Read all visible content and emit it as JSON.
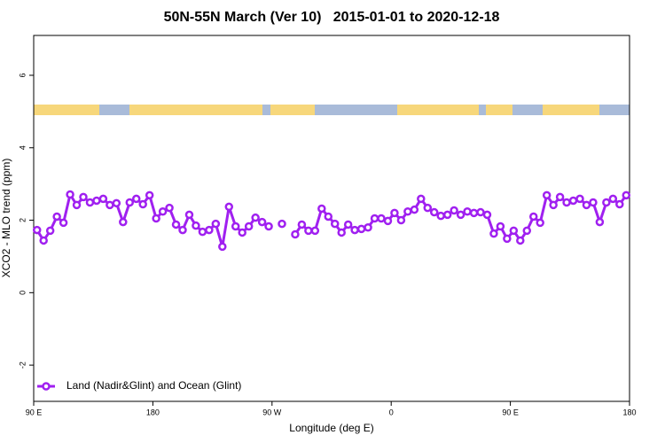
{
  "chart_data": {
    "type": "line",
    "title": "50N-55N March (Ver 10)   2015-01-01 to 2020-12-18",
    "x_label": "Longitude (deg E)",
    "y_label": "XCO2 - MLO trend (ppm)",
    "xlim": [
      90,
      540
    ],
    "xticks": [
      {
        "value": 90,
        "label": "90 E"
      },
      {
        "value": 180,
        "label": "180"
      },
      {
        "value": 270,
        "label": "90 W"
      },
      {
        "value": 360,
        "label": "0"
      },
      {
        "value": 450,
        "label": "90 E"
      },
      {
        "value": 540,
        "label": "180"
      }
    ],
    "ylim": [
      -3,
      7.1
    ],
    "yticks": [
      -2,
      0,
      2,
      4,
      6
    ],
    "grid": false,
    "legend": "bottom-left",
    "x": [
      92.5,
      97.5,
      102.5,
      107.5,
      112.5,
      117.5,
      122.5,
      127.5,
      132.5,
      137.5,
      142.5,
      147.5,
      152.5,
      157.5,
      162.5,
      167.5,
      172.5,
      177.5,
      182.5,
      187.5,
      192.5,
      197.5,
      202.5,
      207.5,
      212.5,
      217.5,
      222.5,
      227.5,
      232.5,
      237.5,
      242.5,
      247.5,
      252.5,
      257.5,
      262.5,
      267.5,
      272.5,
      277.5,
      282.5,
      287.5,
      292.5,
      297.5,
      302.5,
      307.5,
      312.5,
      317.5,
      322.5,
      327.5,
      332.5,
      337.5,
      342.5,
      347.5,
      352.5,
      357.5,
      362.5,
      367.5,
      372.5,
      377.5,
      382.5,
      387.5,
      392.5,
      397.5,
      402.5,
      407.5,
      412.5,
      417.5,
      422.5,
      427.5,
      432.5,
      437.5,
      442.5,
      447.5,
      452.5,
      457.5,
      462.5,
      467.5,
      472.5,
      477.5,
      482.5,
      487.5,
      492.5,
      497.5,
      502.5,
      507.5,
      512.5,
      517.5,
      522.5,
      527.5,
      532.5,
      537.5
    ],
    "series": [
      {
        "name": "Land (Nadir&Glint) and Ocean (Glint)",
        "color": "#a020f0",
        "values": [
          1.73,
          1.44,
          1.71,
          2.1,
          1.93,
          2.71,
          2.42,
          2.64,
          2.49,
          2.54,
          2.59,
          2.42,
          2.47,
          1.95,
          2.49,
          2.59,
          2.44,
          2.69,
          2.05,
          2.24,
          2.34,
          1.88,
          1.73,
          2.15,
          1.85,
          1.68,
          1.73,
          1.9,
          1.27,
          2.37,
          1.83,
          1.66,
          1.83,
          2.07,
          1.95,
          1.83,
          null,
          1.9,
          null,
          1.61,
          1.88,
          1.71,
          1.71,
          2.32,
          2.1,
          1.9,
          1.66,
          1.88,
          1.73,
          1.76,
          1.8,
          2.05,
          2.05,
          1.98,
          2.2,
          2.0,
          2.24,
          2.29,
          2.59,
          2.34,
          2.22,
          2.12,
          2.15,
          2.27,
          2.15,
          2.24,
          2.2,
          2.22,
          2.15,
          1.63,
          1.83,
          1.49,
          1.71,
          1.44,
          1.71,
          2.1,
          1.93,
          2.69,
          2.42,
          2.64,
          2.49,
          2.54,
          2.59,
          2.42,
          2.49,
          1.95,
          2.49,
          2.59,
          2.44,
          2.69
        ]
      }
    ]
  }
}
